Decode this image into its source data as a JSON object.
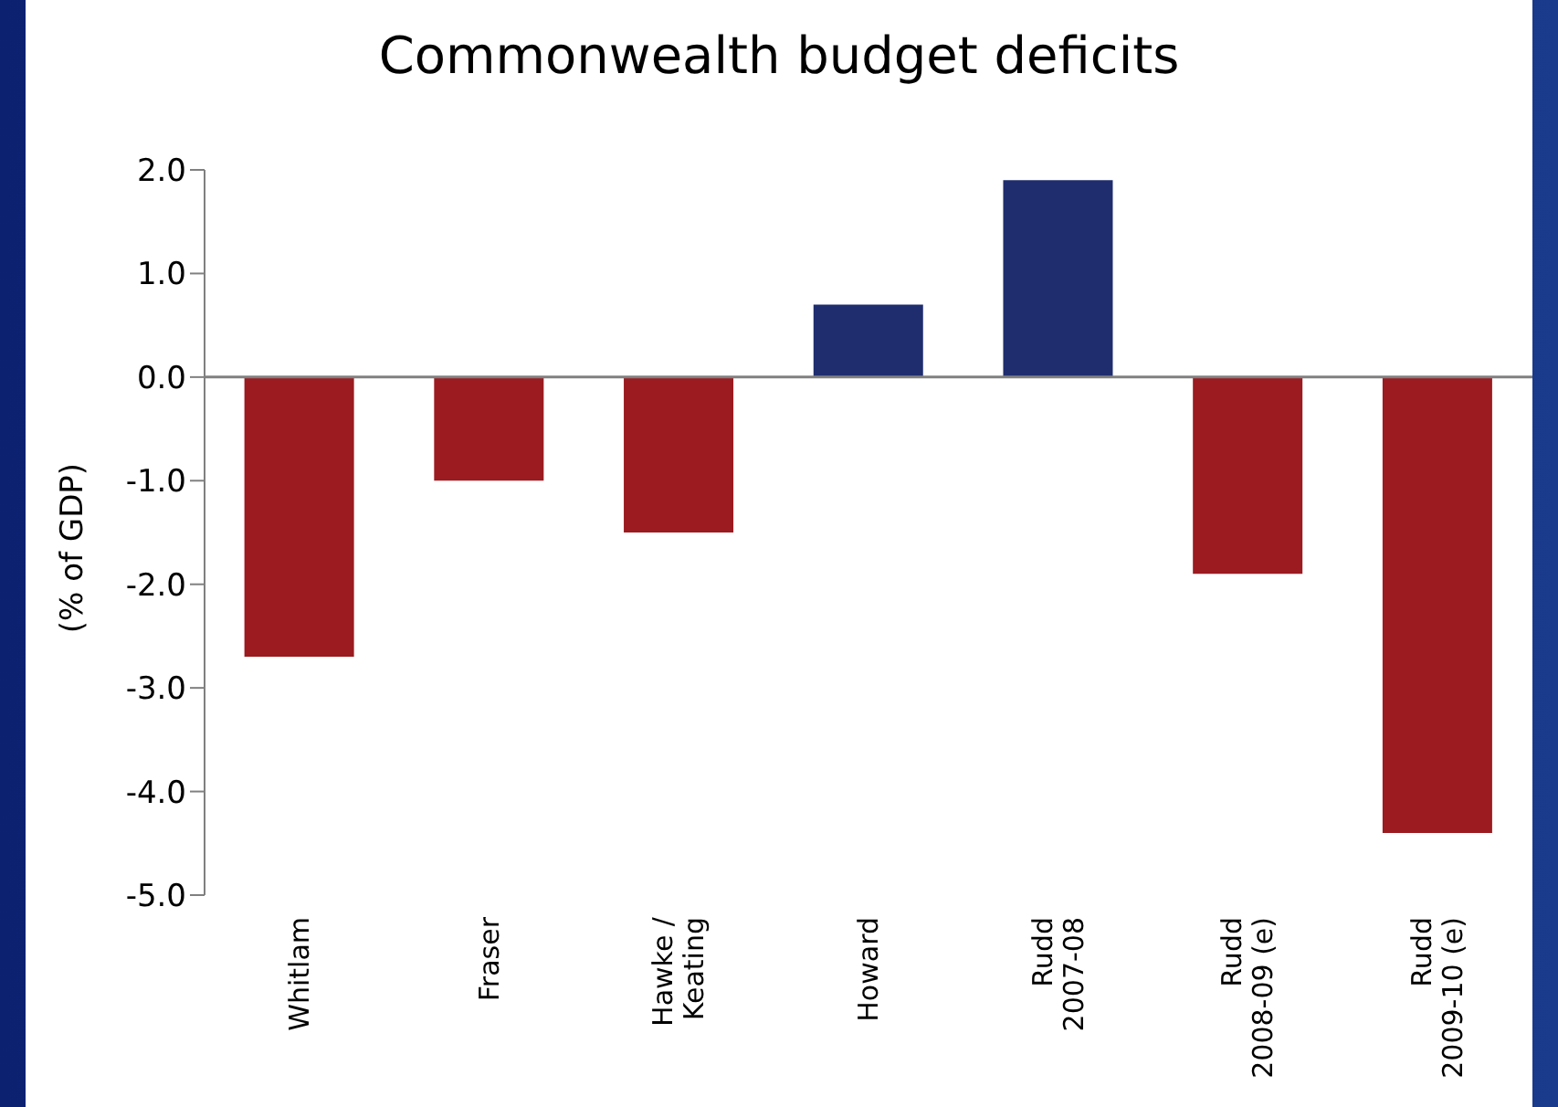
{
  "chart_data": {
    "type": "bar",
    "title": "Commonwealth budget deficits",
    "ylabel": "(% of GDP)",
    "categories": [
      "Whitlam",
      "Fraser",
      "Hawke /\nKeating",
      "Howard",
      "Rudd\n2007-08",
      "Rudd\n2008-09 (e)",
      "Rudd\n2009-10 (e)"
    ],
    "values": [
      -2.7,
      -1.0,
      -1.5,
      0.7,
      1.9,
      -1.9,
      -4.4
    ],
    "colors": [
      "#9b1b20",
      "#9b1b20",
      "#9b1b20",
      "#1f2d6e",
      "#1f2d6e",
      "#9b1b20",
      "#9b1b20"
    ],
    "ylim": [
      -5,
      2
    ],
    "yticks": [
      {
        "value": 2,
        "label": "2.0"
      },
      {
        "value": 1,
        "label": "1.0"
      },
      {
        "value": 0,
        "label": "0.0"
      },
      {
        "value": -1,
        "label": "-1.0"
      },
      {
        "value": -2,
        "label": "-2.0"
      },
      {
        "value": -3,
        "label": "-3.0"
      },
      {
        "value": -4,
        "label": "-4.0"
      },
      {
        "value": -5,
        "label": "-5.0"
      }
    ],
    "legend": false
  }
}
